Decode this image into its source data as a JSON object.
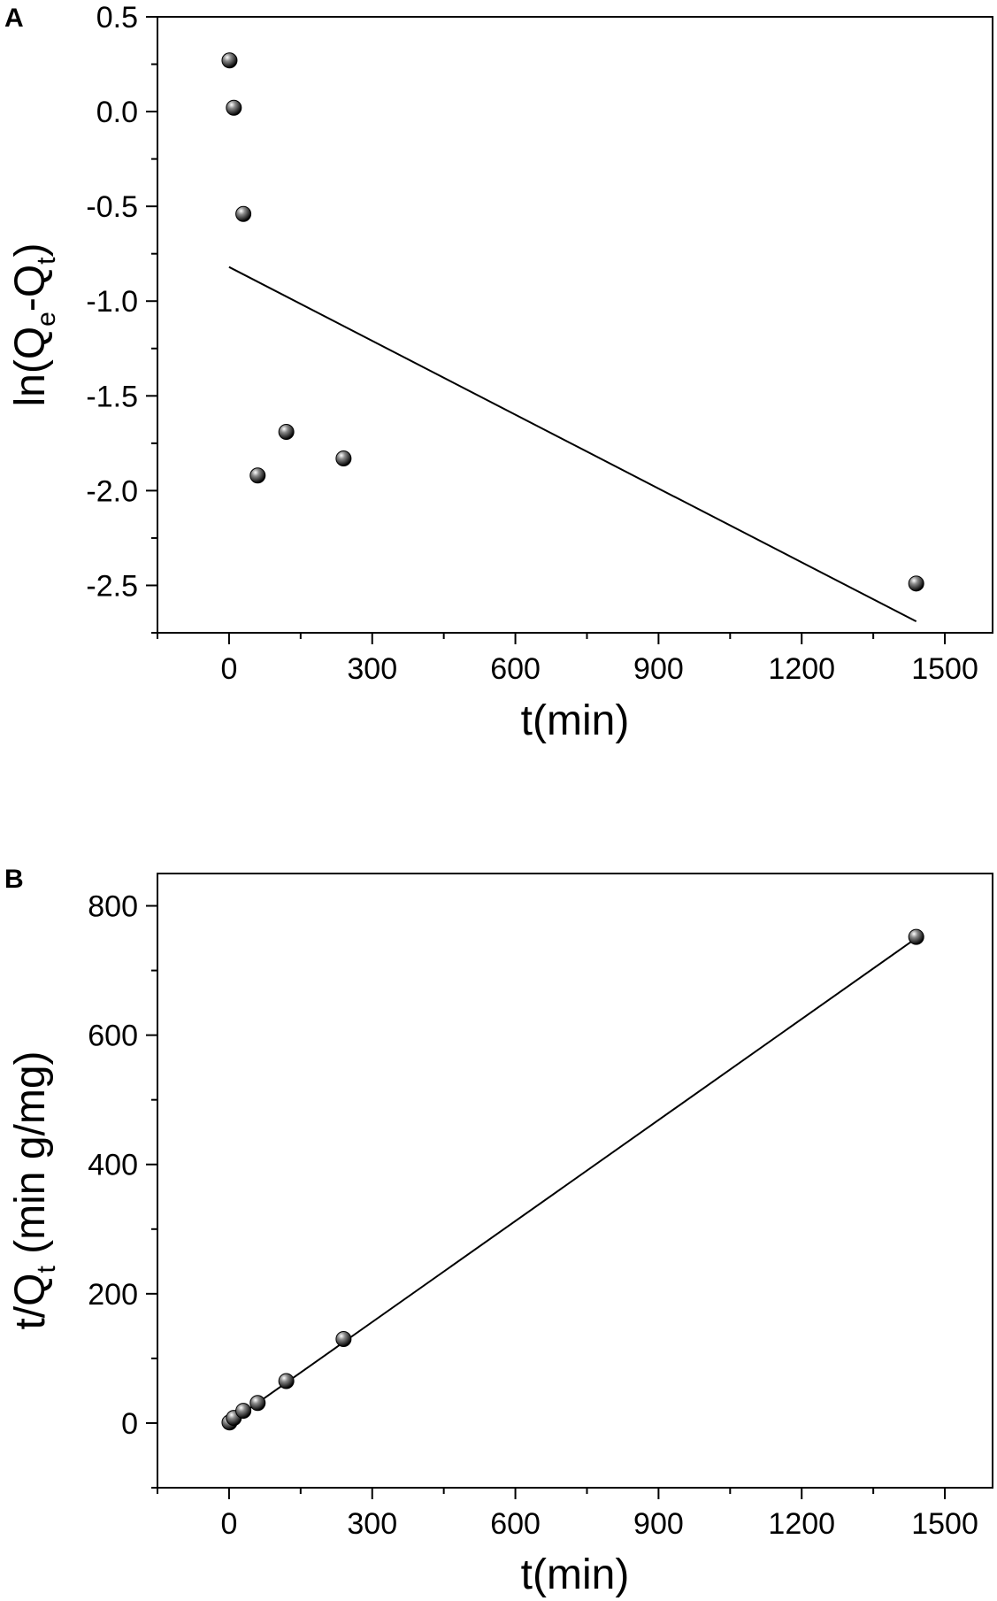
{
  "chart_data": [
    {
      "type": "scatter",
      "panel_label": "A",
      "xlabel": "t(min)",
      "ylabel": {
        "main_1": "ln(Q",
        "sub_1": "e",
        "main_2": "-Q",
        "sub_2": "t",
        "main_3": ")"
      },
      "xlim": [
        -150,
        1600
      ],
      "ylim": [
        -2.75,
        0.5
      ],
      "xticks": [
        0,
        300,
        600,
        900,
        1200,
        1500
      ],
      "xtick_labels": [
        "0",
        "300",
        "600",
        "900",
        "1200",
        "1500"
      ],
      "yticks": [
        0.5,
        0.0,
        -0.5,
        -1.0,
        -1.5,
        -2.0,
        -2.5
      ],
      "ytick_labels": [
        "0.5",
        "0.0",
        "-0.5",
        "-1.0",
        "-1.5",
        "-2.0",
        "-2.5"
      ],
      "grid": false,
      "series": [
        {
          "points": [
            {
              "x": 1,
              "y": 0.27
            },
            {
              "x": 10,
              "y": 0.02
            },
            {
              "x": 30,
              "y": -0.54
            },
            {
              "x": 60,
              "y": -1.92
            },
            {
              "x": 120,
              "y": -1.69
            },
            {
              "x": 240,
              "y": -1.83
            },
            {
              "x": 1440,
              "y": -2.49
            }
          ]
        }
      ],
      "fit_line": {
        "x": [
          0,
          1440
        ],
        "y": [
          -0.82,
          -2.69
        ]
      },
      "marker_color": "#000000",
      "line_color": "#000000"
    },
    {
      "type": "scatter",
      "panel_label": "B",
      "xlabel": "t(min)",
      "ylabel": {
        "main_1": "t/Q",
        "sub_1": "t",
        "main_2": " (min g/mg)"
      },
      "xlim": [
        -150,
        1600
      ],
      "ylim": [
        -100,
        850
      ],
      "xticks": [
        0,
        300,
        600,
        900,
        1200,
        1500
      ],
      "xtick_labels": [
        "0",
        "300",
        "600",
        "900",
        "1200",
        "1500"
      ],
      "yticks": [
        0,
        200,
        400,
        600,
        800
      ],
      "ytick_labels": [
        "0",
        "200",
        "400",
        "600",
        "800"
      ],
      "grid": false,
      "series": [
        {
          "points": [
            {
              "x": 1,
              "y": 1
            },
            {
              "x": 10,
              "y": 8
            },
            {
              "x": 30,
              "y": 19
            },
            {
              "x": 60,
              "y": 31
            },
            {
              "x": 120,
              "y": 65
            },
            {
              "x": 240,
              "y": 130
            },
            {
              "x": 1440,
              "y": 752
            }
          ]
        }
      ],
      "fit_line": {
        "x": [
          0,
          1440
        ],
        "y": [
          0,
          750
        ]
      },
      "marker_color": "#000000",
      "line_color": "#000000"
    }
  ]
}
